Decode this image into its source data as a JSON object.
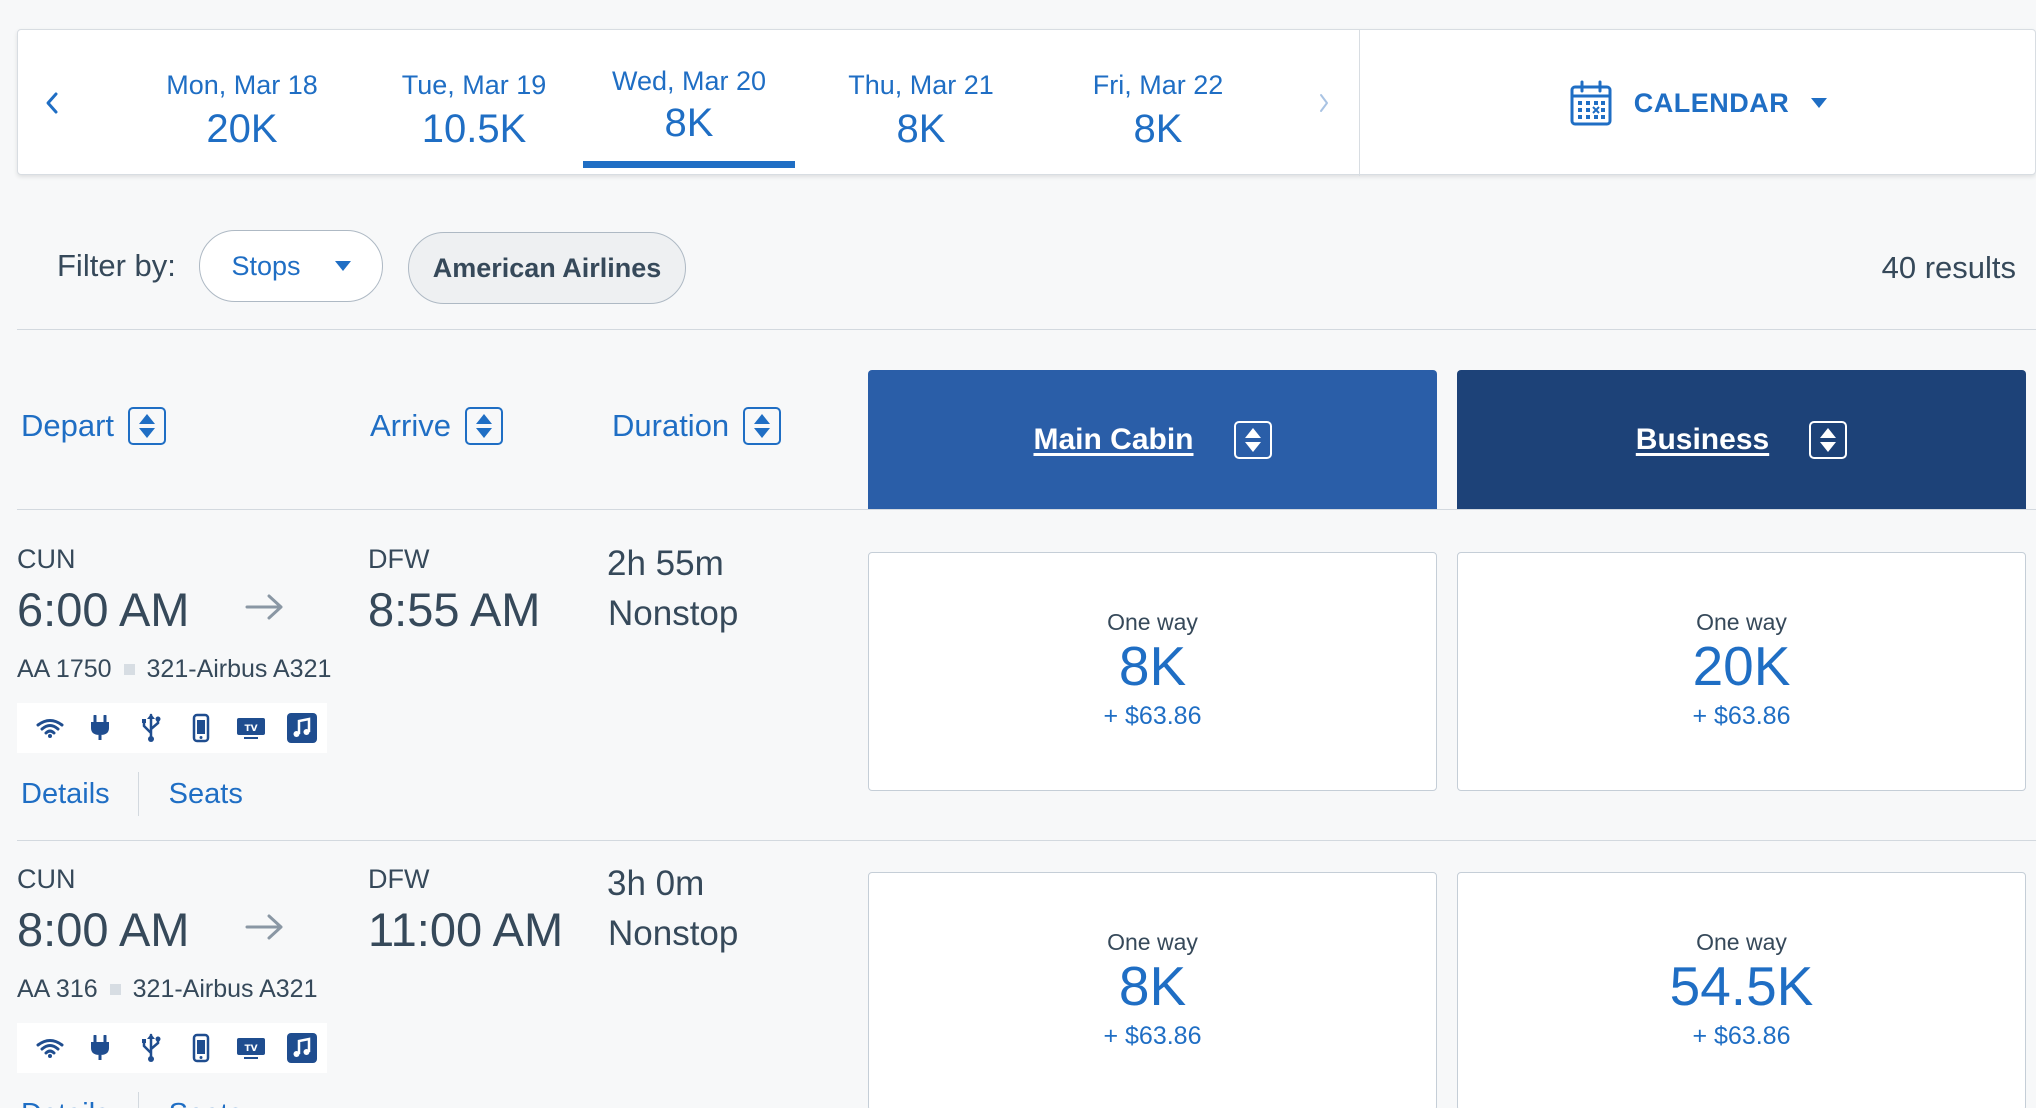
{
  "date_bar": {
    "prev_icon": "chevron-left-icon",
    "next_icon": "chevron-right-icon",
    "dates": [
      {
        "label": "Mon, Mar 18",
        "value": "20K"
      },
      {
        "label": "Tue, Mar 19",
        "value": "10.5K"
      },
      {
        "label": "Wed, Mar 20",
        "value": "8K"
      },
      {
        "label": "Thu, Mar 21",
        "value": "8K"
      },
      {
        "label": "Fri, Mar 22",
        "value": "8K"
      }
    ],
    "selected_index": 2,
    "calendar_label": "CALENDAR",
    "calendar_icon": "calendar-icon"
  },
  "filter": {
    "label": "Filter by:",
    "stops_label": "Stops",
    "airline_label": "American Airlines",
    "results": "40 results"
  },
  "sort_headers": {
    "depart": "Depart",
    "arrive": "Arrive",
    "duration": "Duration",
    "main_cabin": "Main Cabin",
    "business": "Business"
  },
  "flights": [
    {
      "origin": "CUN",
      "depart_time": "6:00 AM",
      "destination": "DFW",
      "arrive_time": "8:55 AM",
      "duration": "2h 55m",
      "stops": "Nonstop",
      "flight_number": "AA 1750",
      "aircraft": "321-Airbus A321",
      "amenities": [
        "wifi-icon",
        "power-icon",
        "usb-icon",
        "phone-icon",
        "tv-icon",
        "music-icon"
      ],
      "details_label": "Details",
      "seats_label": "Seats",
      "main": {
        "label": "One way",
        "miles": "8K",
        "tax": "+ $63.86"
      },
      "business": {
        "label": "One way",
        "miles": "20K",
        "tax": "+ $63.86"
      }
    },
    {
      "origin": "CUN",
      "depart_time": "8:00 AM",
      "destination": "DFW",
      "arrive_time": "11:00 AM",
      "duration": "3h 0m",
      "stops": "Nonstop",
      "flight_number": "AA 316",
      "aircraft": "321-Airbus A321",
      "amenities": [
        "wifi-icon",
        "power-icon",
        "usb-icon",
        "phone-icon",
        "tv-icon",
        "music-icon"
      ],
      "details_label": "Details",
      "seats_label": "Seats",
      "main": {
        "label": "One way",
        "miles": "8K",
        "tax": "+ $63.86"
      },
      "business": {
        "label": "One way",
        "miles": "54.5K",
        "tax": "+ $63.86"
      }
    }
  ],
  "colors": {
    "link_blue": "#1f6ec4",
    "main_cabin_header": "#2a5ea8",
    "business_header": "#1d4278",
    "text": "#36495a",
    "background": "#f7f8f9"
  }
}
